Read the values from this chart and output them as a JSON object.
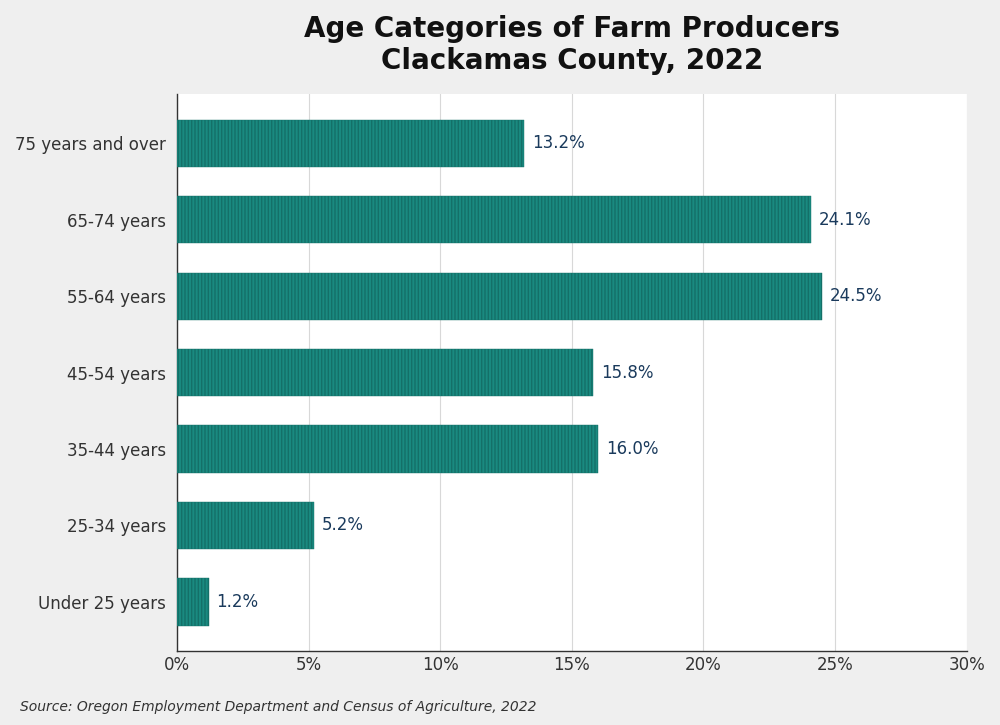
{
  "title": "Age Categories of Farm Producers\nClackamas County, 2022",
  "categories": [
    "Under 25 years",
    "25-34 years",
    "35-44 years",
    "45-54 years",
    "55-64 years",
    "65-74 years",
    "75 years and over"
  ],
  "values": [
    1.2,
    5.2,
    16.0,
    15.8,
    24.5,
    24.1,
    13.2
  ],
  "bar_color": "#1a8a80",
  "bar_edge_color": "#147068",
  "label_color": "#1a3a5c",
  "figure_background_color": "#efefef",
  "plot_background_color": "#ffffff",
  "grid_color": "#d8d8d8",
  "title_fontsize": 20,
  "label_fontsize": 12,
  "tick_fontsize": 12,
  "source_text": "Source: Oregon Employment Department and Census of Agriculture, 2022",
  "xlim": [
    0,
    30
  ],
  "xticks": [
    0,
    5,
    10,
    15,
    20,
    25,
    30
  ],
  "bar_height": 0.62
}
